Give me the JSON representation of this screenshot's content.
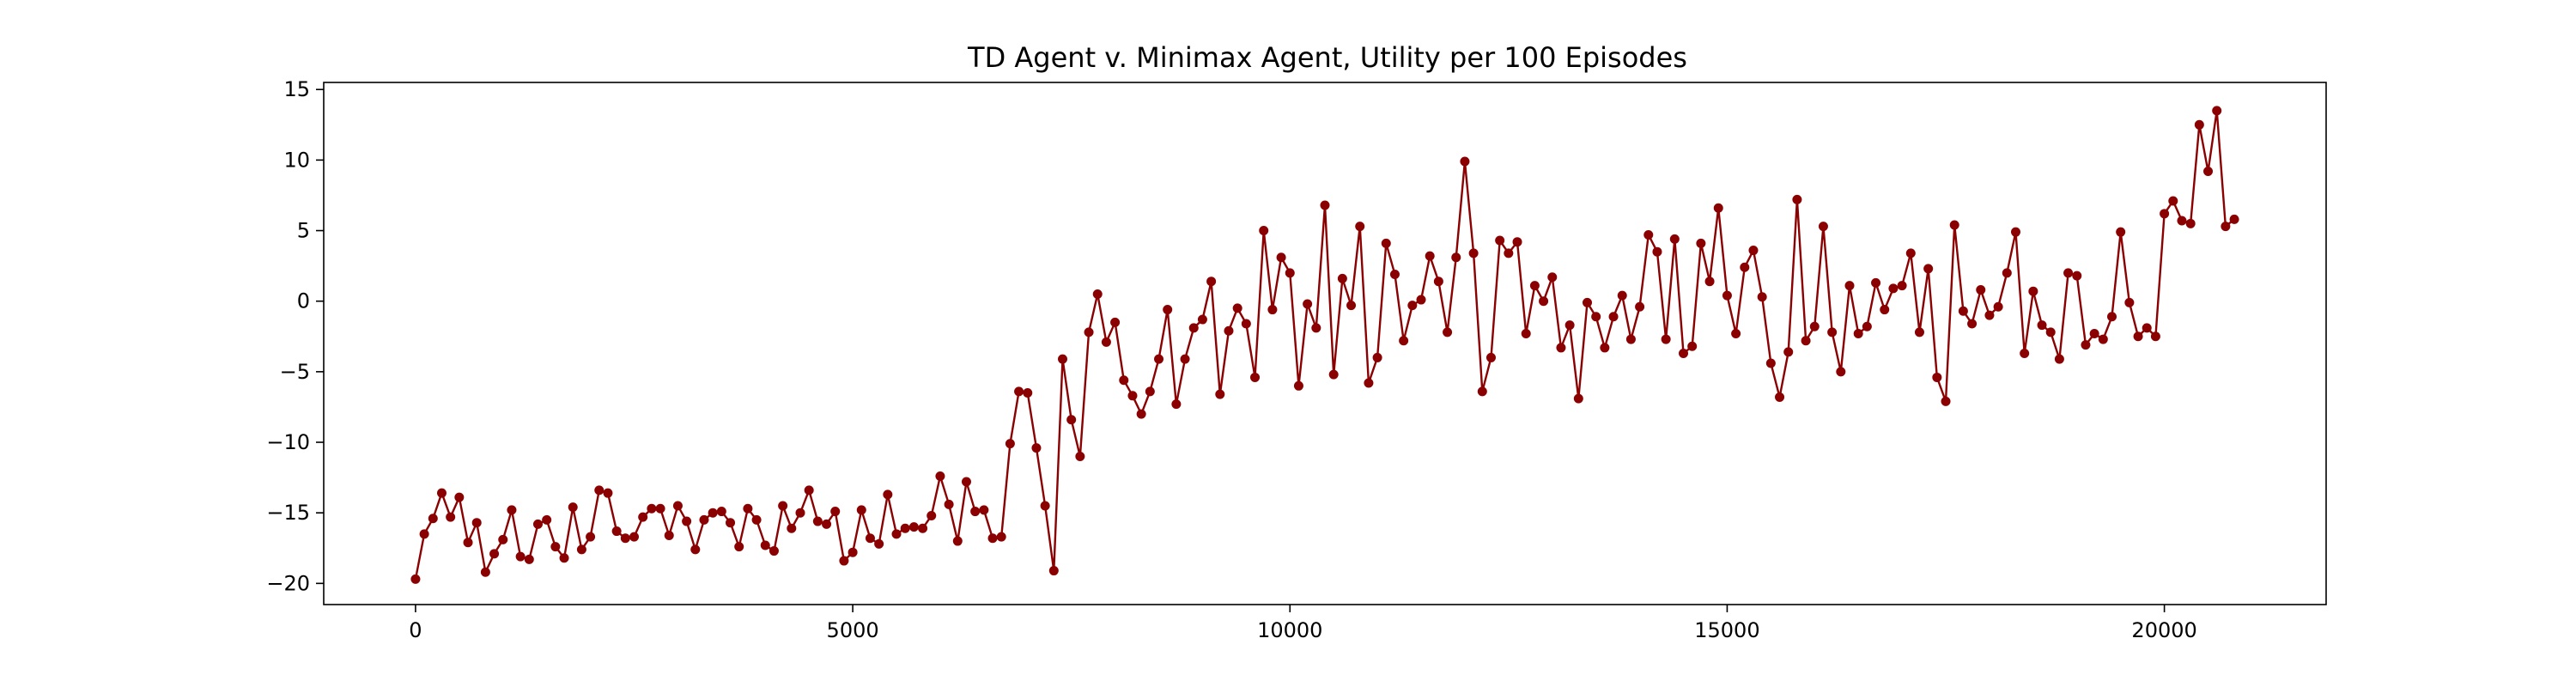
{
  "chart_data": {
    "type": "line",
    "title": "TD Agent v. Minimax Agent, Utility per 100 Episodes",
    "xlabel": "",
    "ylabel": "",
    "xlim": [
      -1050,
      21850
    ],
    "ylim": [
      -21.5,
      15.5
    ],
    "x_ticks": [
      0,
      5000,
      10000,
      15000,
      20000
    ],
    "x_tick_labels": [
      "0",
      "5000",
      "10000",
      "15000",
      "20000"
    ],
    "y_ticks": [
      -20,
      -15,
      -10,
      -5,
      0,
      5,
      10,
      15
    ],
    "y_tick_labels": [
      "−20",
      "−15",
      "−10",
      "−5",
      "0",
      "5",
      "10",
      "15"
    ],
    "grid": false,
    "line_color": "#8b0000",
    "marker": "circle",
    "x_start": 0,
    "x_step": 100,
    "series": [
      {
        "values": [
          -19.7,
          -16.5,
          -15.4,
          -13.6,
          -15.3,
          -13.9,
          -17.1,
          -15.7,
          -19.2,
          -17.9,
          -16.9,
          -14.8,
          -18.1,
          -18.3,
          -15.8,
          -15.5,
          -17.4,
          -18.2,
          -14.6,
          -17.6,
          -16.7,
          -13.4,
          -13.6,
          -16.3,
          -16.8,
          -16.7,
          -15.3,
          -14.7,
          -14.7,
          -16.6,
          -14.5,
          -15.6,
          -17.6,
          -15.5,
          -15.0,
          -14.9,
          -15.7,
          -17.4,
          -14.7,
          -15.5,
          -17.3,
          -17.7,
          -14.5,
          -16.1,
          -15.0,
          -13.4,
          -15.6,
          -15.8,
          -14.9,
          -18.4,
          -17.8,
          -14.8,
          -16.8,
          -17.2,
          -13.7,
          -16.5,
          -16.1,
          -16.0,
          -16.1,
          -15.2,
          -12.4,
          -14.4,
          -17.0,
          -12.8,
          -14.9,
          -14.8,
          -16.8,
          -16.7,
          -10.1,
          -6.4,
          -6.5,
          -10.4,
          -14.5,
          -19.1,
          -4.1,
          -8.4,
          -11.0,
          -2.2,
          0.5,
          -2.9,
          -1.5,
          -5.6,
          -6.7,
          -8.0,
          -6.4,
          -4.1,
          -0.6,
          -7.3,
          -4.1,
          -1.9,
          -1.3,
          1.4,
          -6.6,
          -2.1,
          -0.5,
          -1.6,
          -5.4,
          5.0,
          -0.6,
          3.1,
          2.0,
          -6.0,
          -0.2,
          -1.9,
          6.8,
          -5.2,
          1.6,
          -0.3,
          5.3,
          -5.8,
          -4.0,
          4.1,
          1.9,
          -2.8,
          -0.3,
          0.1,
          3.2,
          1.4,
          -2.2,
          3.1,
          9.9,
          3.4,
          -6.4,
          -4.0,
          4.3,
          3.4,
          4.2,
          -2.3,
          1.1,
          0.0,
          1.7,
          -3.3,
          -1.7,
          -6.9,
          -0.1,
          -1.1,
          -3.3,
          -1.1,
          0.4,
          -2.7,
          -0.4,
          4.7,
          3.5,
          -2.7,
          4.4,
          -3.7,
          -3.2,
          4.1,
          1.4,
          6.6,
          0.4,
          -2.3,
          2.4,
          3.6,
          0.3,
          -4.4,
          -6.8,
          -3.6,
          7.2,
          -2.8,
          -1.8,
          5.3,
          -2.2,
          -5.0,
          1.1,
          -2.3,
          -1.8,
          1.3,
          -0.6,
          0.9,
          1.1,
          3.4,
          -2.2,
          2.3,
          -5.4,
          -7.1,
          5.4,
          -0.7,
          -1.6,
          0.8,
          -1.0,
          -0.4,
          2.0,
          4.9,
          -3.7,
          0.7,
          -1.7,
          -2.2,
          -4.1,
          2.0,
          1.8,
          -3.1,
          -2.3,
          -2.7,
          -1.1,
          4.9,
          -0.1,
          -2.5,
          -1.9,
          -2.5,
          6.2,
          7.1,
          5.7,
          5.5,
          12.5,
          9.2,
          13.5,
          5.3,
          5.8
        ]
      }
    ]
  }
}
